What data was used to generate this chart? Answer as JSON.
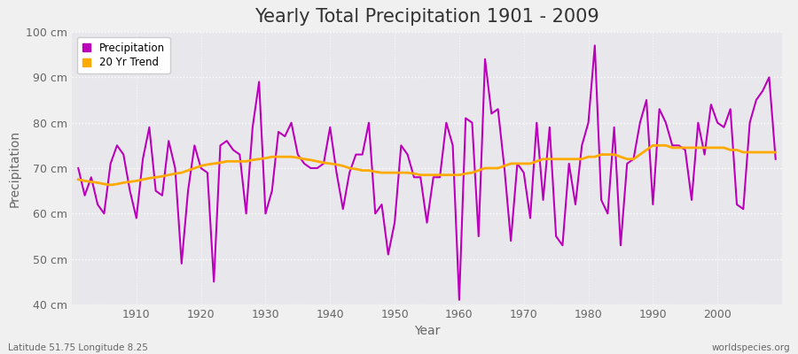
{
  "title": "Yearly Total Precipitation 1901 - 2009",
  "xlabel": "Year",
  "ylabel": "Precipitation",
  "lat_lon_text": "Latitude 51.75 Longitude 8.25",
  "watermark": "worldspecies.org",
  "years": [
    1901,
    1902,
    1903,
    1904,
    1905,
    1906,
    1907,
    1908,
    1909,
    1910,
    1911,
    1912,
    1913,
    1914,
    1915,
    1916,
    1917,
    1918,
    1919,
    1920,
    1921,
    1922,
    1923,
    1924,
    1925,
    1926,
    1927,
    1928,
    1929,
    1930,
    1931,
    1932,
    1933,
    1934,
    1935,
    1936,
    1937,
    1938,
    1939,
    1940,
    1941,
    1942,
    1943,
    1944,
    1945,
    1946,
    1947,
    1948,
    1949,
    1950,
    1951,
    1952,
    1953,
    1954,
    1955,
    1956,
    1957,
    1958,
    1959,
    1960,
    1961,
    1962,
    1963,
    1964,
    1965,
    1966,
    1967,
    1968,
    1969,
    1970,
    1971,
    1972,
    1973,
    1974,
    1975,
    1976,
    1977,
    1978,
    1979,
    1980,
    1981,
    1982,
    1983,
    1984,
    1985,
    1986,
    1987,
    1988,
    1989,
    1990,
    1991,
    1992,
    1993,
    1994,
    1995,
    1996,
    1997,
    1998,
    1999,
    2000,
    2001,
    2002,
    2003,
    2004,
    2005,
    2006,
    2007,
    2008,
    2009
  ],
  "precipitation": [
    70,
    64,
    68,
    62,
    60,
    71,
    75,
    73,
    65,
    59,
    72,
    79,
    65,
    64,
    76,
    70,
    49,
    65,
    75,
    70,
    69,
    45,
    75,
    76,
    74,
    73,
    60,
    79,
    89,
    60,
    65,
    78,
    77,
    80,
    73,
    71,
    70,
    70,
    71,
    79,
    69,
    61,
    69,
    73,
    73,
    80,
    60,
    62,
    51,
    58,
    75,
    73,
    68,
    68,
    58,
    68,
    68,
    80,
    75,
    41,
    81,
    80,
    55,
    94,
    82,
    83,
    70,
    54,
    71,
    69,
    59,
    80,
    63,
    79,
    55,
    53,
    71,
    62,
    75,
    80,
    97,
    63,
    60,
    79,
    53,
    71,
    72,
    80,
    85,
    62,
    83,
    80,
    75,
    75,
    74,
    63,
    80,
    73,
    84,
    80,
    79,
    83,
    62,
    61,
    80,
    85,
    87,
    90,
    72
  ],
  "trend": [
    67.5,
    67.2,
    67.0,
    66.8,
    66.5,
    66.3,
    66.5,
    66.8,
    67.0,
    67.2,
    67.5,
    67.8,
    68.0,
    68.2,
    68.5,
    68.8,
    69.0,
    69.5,
    70.0,
    70.5,
    70.8,
    71.0,
    71.2,
    71.5,
    71.5,
    71.5,
    71.5,
    71.8,
    72.0,
    72.2,
    72.5,
    72.5,
    72.5,
    72.5,
    72.3,
    72.0,
    71.8,
    71.5,
    71.2,
    71.0,
    70.8,
    70.5,
    70.0,
    69.8,
    69.5,
    69.5,
    69.2,
    69.0,
    69.0,
    69.0,
    69.0,
    69.0,
    68.8,
    68.5,
    68.5,
    68.5,
    68.5,
    68.5,
    68.5,
    68.5,
    68.8,
    69.0,
    69.5,
    70.0,
    70.0,
    70.0,
    70.5,
    71.0,
    71.0,
    71.0,
    71.0,
    71.5,
    72.0,
    72.0,
    72.0,
    72.0,
    72.0,
    72.0,
    72.0,
    72.5,
    72.5,
    73.0,
    73.0,
    73.0,
    72.5,
    72.0,
    72.0,
    73.0,
    74.0,
    75.0,
    75.0,
    75.0,
    74.5,
    74.5,
    74.5,
    74.5,
    74.5,
    74.5,
    74.5,
    74.5,
    74.5,
    74.0,
    74.0,
    73.5,
    73.5,
    73.5,
    73.5,
    73.5,
    73.5
  ],
  "precip_color": "#bb00bb",
  "trend_color": "#ffaa00",
  "fig_facecolor": "#f0f0f0",
  "plot_facecolor": "#e8e8ec",
  "ylim": [
    40,
    100
  ],
  "yticks": [
    40,
    50,
    60,
    70,
    80,
    90,
    100
  ],
  "ytick_labels": [
    "40 cm",
    "50 cm",
    "60 cm",
    "70 cm",
    "80 cm",
    "90 cm",
    "100 cm"
  ],
  "xticks": [
    1910,
    1920,
    1930,
    1940,
    1950,
    1960,
    1970,
    1980,
    1990,
    2000
  ],
  "title_fontsize": 15,
  "axis_label_fontsize": 10,
  "tick_fontsize": 9,
  "linewidth_precip": 1.5,
  "linewidth_trend": 2.0
}
